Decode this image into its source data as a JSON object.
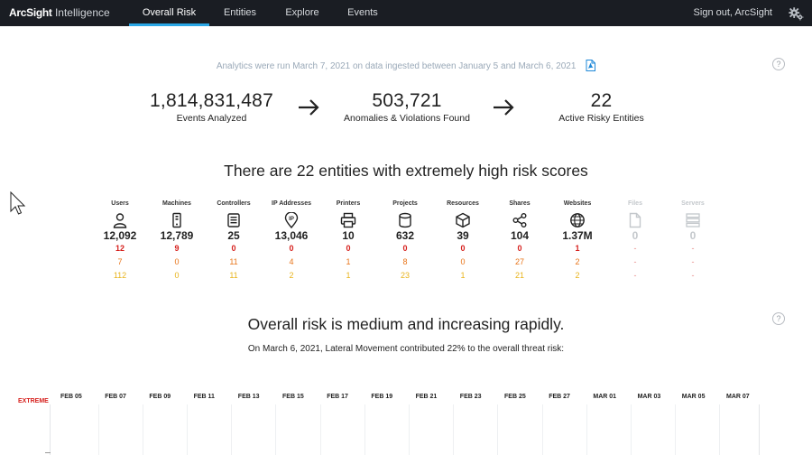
{
  "app": {
    "logo_brand": "ArcSight",
    "logo_product": "Intelligence"
  },
  "nav": {
    "tabs": [
      {
        "label": "Overall Risk",
        "active": true
      },
      {
        "label": "Entities",
        "active": false
      },
      {
        "label": "Explore",
        "active": false
      },
      {
        "label": "Events",
        "active": false
      }
    ],
    "signout": "Sign out, ArcSight",
    "icons": {
      "settings": "gears-icon"
    }
  },
  "summary": {
    "analytics_text": "Analytics were run March 7, 2021 on data ingested between January 5 and March 6, 2021",
    "pdf_icon": "pdf-export-icon",
    "stats": [
      {
        "value": "1,814,831,487",
        "label": "Events Analyzed"
      },
      {
        "value": "503,721",
        "label": "Anomalies & Violations Found"
      },
      {
        "value": "22",
        "label": "Active Risky Entities"
      }
    ]
  },
  "entities_section": {
    "headline": "There are 22 entities with extremely high risk scores",
    "entities": [
      {
        "name": "Users",
        "icon": "user-icon",
        "count": "12,092",
        "extreme": "12",
        "high": "7",
        "medium": "112",
        "enabled": true
      },
      {
        "name": "Machines",
        "icon": "machine-icon",
        "count": "12,789",
        "extreme": "9",
        "high": "0",
        "medium": "0",
        "enabled": true
      },
      {
        "name": "Controllers",
        "icon": "controller-icon",
        "count": "25",
        "extreme": "0",
        "high": "11",
        "medium": "11",
        "enabled": true
      },
      {
        "name": "IP Addresses",
        "icon": "ip-address-icon",
        "count": "13,046",
        "extreme": "0",
        "high": "4",
        "medium": "2",
        "enabled": true
      },
      {
        "name": "Printers",
        "icon": "printer-icon",
        "count": "10",
        "extreme": "0",
        "high": "1",
        "medium": "1",
        "enabled": true
      },
      {
        "name": "Projects",
        "icon": "database-icon",
        "count": "632",
        "extreme": "0",
        "high": "8",
        "medium": "23",
        "enabled": true
      },
      {
        "name": "Resources",
        "icon": "cube-icon",
        "count": "39",
        "extreme": "0",
        "high": "0",
        "medium": "1",
        "enabled": true
      },
      {
        "name": "Shares",
        "icon": "share-icon",
        "count": "104",
        "extreme": "0",
        "high": "27",
        "medium": "21",
        "enabled": true
      },
      {
        "name": "Websites",
        "icon": "globe-icon",
        "count": "1.37M",
        "extreme": "1",
        "high": "2",
        "medium": "2",
        "enabled": true
      },
      {
        "name": "Files",
        "icon": "file-icon",
        "count": "0",
        "extreme": "-",
        "high": "-",
        "medium": "-",
        "enabled": false
      },
      {
        "name": "Servers",
        "icon": "server-icon",
        "count": "0",
        "extreme": "-",
        "high": "-",
        "medium": "-",
        "enabled": false
      }
    ],
    "colors": {
      "extreme": "#d6201d",
      "high": "#e8751a",
      "medium": "#e8b31a"
    }
  },
  "risk_section": {
    "headline": "Overall risk is medium and increasing rapidly.",
    "subline": "On March 6, 2021, Lateral Movement contributed 22% to the overall threat risk:",
    "level_label": "EXTREME",
    "dates": [
      "FEB 05",
      "FEB 07",
      "FEB 09",
      "FEB 11",
      "FEB 13",
      "FEB 15",
      "FEB 17",
      "FEB 19",
      "FEB 21",
      "FEB 23",
      "FEB 25",
      "FEB 27",
      "MAR 01",
      "MAR 03",
      "MAR 05",
      "MAR 07"
    ]
  },
  "help_icon": "help-icon",
  "help_symbol": "?"
}
